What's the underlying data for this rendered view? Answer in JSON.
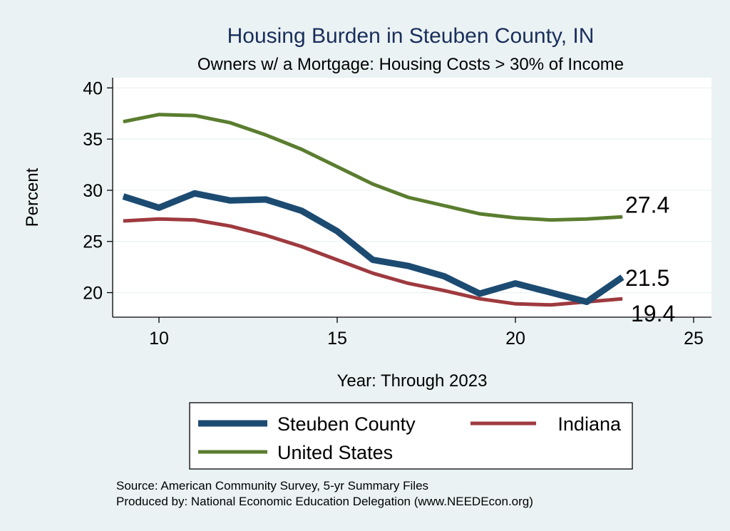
{
  "chart_data": {
    "type": "line",
    "title": "Housing Burden in Steuben County, IN",
    "subtitle": "Owners w/ a Mortgage: Housing Costs > 30% of Income",
    "xlabel": "Year: Through 2023",
    "ylabel": "Percent",
    "xlim": [
      8.7,
      25.5
    ],
    "ylim": [
      17.6,
      41
    ],
    "x_ticks": [
      10,
      15,
      20,
      25
    ],
    "y_ticks": [
      20,
      25,
      30,
      35,
      40
    ],
    "grid": true,
    "legend_position": "bottom",
    "series": [
      {
        "name": "Steuben County",
        "color": "#1c4b72",
        "x": [
          9,
          10,
          11,
          12,
          13,
          14,
          15,
          16,
          17,
          18,
          19,
          20,
          21,
          22,
          23
        ],
        "values": [
          29.4,
          28.3,
          29.7,
          29.0,
          29.1,
          28.0,
          26.0,
          23.2,
          22.6,
          21.6,
          19.9,
          20.9,
          20.0,
          19.1,
          21.5
        ],
        "end_label": "21.5"
      },
      {
        "name": "Indiana",
        "color": "#9e3a3f",
        "x": [
          9,
          10,
          11,
          12,
          13,
          14,
          15,
          16,
          17,
          18,
          19,
          20,
          21,
          22,
          23
        ],
        "values": [
          27.0,
          27.2,
          27.1,
          26.5,
          25.6,
          24.5,
          23.2,
          21.9,
          20.9,
          20.2,
          19.4,
          18.9,
          18.8,
          19.1,
          19.4
        ],
        "end_label": "19.4"
      },
      {
        "name": "United States",
        "color": "#5a7d2f",
        "x": [
          9,
          10,
          11,
          12,
          13,
          14,
          15,
          16,
          17,
          18,
          19,
          20,
          21,
          22,
          23
        ],
        "values": [
          36.7,
          37.4,
          37.3,
          36.6,
          35.4,
          34.0,
          32.3,
          30.6,
          29.3,
          28.5,
          27.7,
          27.3,
          27.1,
          27.2,
          27.4
        ],
        "end_label": "27.4"
      }
    ],
    "notes": [
      "Source: American Community Survey, 5-yr Summary Files",
      "Produced by: National Economic Education Delegation (www.NEEDEcon.org)"
    ]
  }
}
